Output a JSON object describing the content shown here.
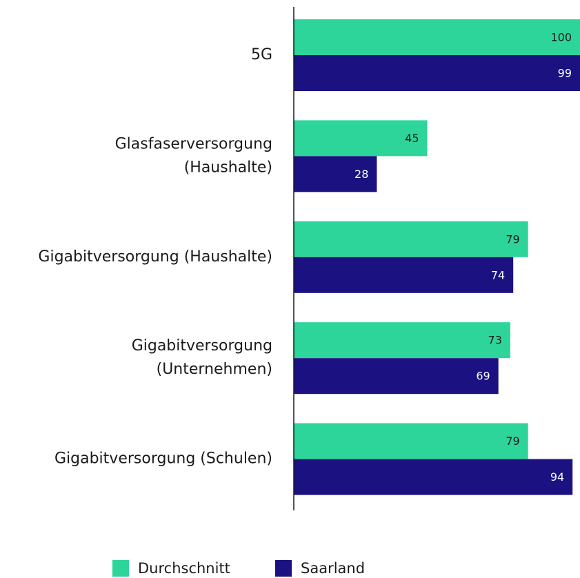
{
  "chart_data": {
    "type": "hbar",
    "categories": [
      [
        "5G"
      ],
      [
        "Glasfaserversorgung",
        "(Haushalte)"
      ],
      [
        "Gigabitversorgung (Haushalte)"
      ],
      [
        "Gigabitversorgung",
        "(Unternehmen)"
      ],
      [
        "Gigabitversorgung (Schulen)"
      ]
    ],
    "series": [
      {
        "name": "Durchschnitt",
        "color": "#2dd59b",
        "label_color": "#1a1a1a",
        "values": [
          100,
          45,
          79,
          73,
          79
        ]
      },
      {
        "name": "Saarland",
        "color": "#1b1180",
        "label_color": "#ffffff",
        "values": [
          99,
          28,
          74,
          69,
          94
        ]
      }
    ],
    "xlim": [
      0,
      100
    ]
  }
}
